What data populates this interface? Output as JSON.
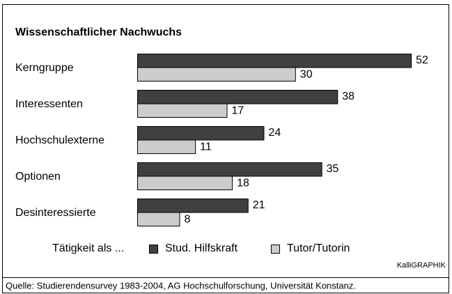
{
  "chart_data": {
    "type": "bar",
    "orientation": "horizontal",
    "title": "Wissenschaftlicher Nachwuchs",
    "categories": [
      "Kerngruppe",
      "Interessenten",
      "Hochschulexterne",
      "Optionen",
      "Desinteressierte"
    ],
    "series": [
      {
        "name": "Stud. Hilfskraft",
        "color": "#404040",
        "values": [
          52,
          38,
          24,
          35,
          21
        ]
      },
      {
        "name": "Tutor/Tutorin",
        "color": "#cccccc",
        "values": [
          30,
          17,
          11,
          18,
          8
        ]
      }
    ],
    "legend_title": "Tätigkeit als ...",
    "credit": "KalliGRAPHIK",
    "source": "Quelle: Studierendensurvey 1983-2004, AG Hochschulforschung, Universität Konstanz."
  }
}
